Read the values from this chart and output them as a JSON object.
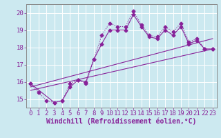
{
  "xlabel": "Windchill (Refroidissement éolien,°C)",
  "background_color": "#cce9f0",
  "grid_color": "#b0d8e0",
  "line_color": "#882299",
  "spine_color": "#888888",
  "xlim": [
    -0.5,
    23.5
  ],
  "ylim": [
    14.5,
    20.5
  ],
  "yticks": [
    15,
    16,
    17,
    18,
    19,
    20
  ],
  "xticks": [
    0,
    1,
    2,
    3,
    4,
    5,
    6,
    7,
    8,
    9,
    10,
    11,
    12,
    13,
    14,
    15,
    16,
    17,
    18,
    19,
    20,
    21,
    22,
    23
  ],
  "line1_x": [
    0,
    1,
    2,
    3,
    4,
    5,
    6,
    7,
    8,
    9,
    10,
    11,
    12,
    13,
    14,
    15,
    16,
    17,
    18,
    19,
    20,
    21,
    22,
    23
  ],
  "line1_y": [
    15.9,
    15.4,
    14.9,
    14.8,
    14.9,
    15.9,
    16.1,
    15.9,
    17.3,
    18.7,
    19.4,
    19.2,
    19.2,
    20.1,
    19.3,
    18.7,
    18.6,
    19.2,
    18.9,
    19.4,
    18.3,
    18.5,
    17.9,
    17.9
  ],
  "line2_x": [
    0,
    23
  ],
  "line2_y": [
    15.7,
    18.5
  ],
  "line3_x": [
    0,
    23
  ],
  "line3_y": [
    15.5,
    17.9
  ],
  "line4_x": [
    0,
    3,
    4,
    5,
    6,
    7,
    8,
    9,
    10,
    11,
    12,
    13,
    14,
    15,
    16,
    17,
    18,
    19,
    20,
    21,
    22,
    23
  ],
  "line4_y": [
    15.9,
    14.8,
    14.9,
    15.7,
    16.1,
    16.0,
    17.3,
    18.2,
    19.0,
    19.0,
    19.0,
    19.9,
    19.2,
    18.6,
    18.5,
    19.0,
    18.7,
    19.2,
    18.2,
    18.4,
    17.9,
    17.9
  ],
  "font_size": 6.5,
  "label_font_size": 7
}
